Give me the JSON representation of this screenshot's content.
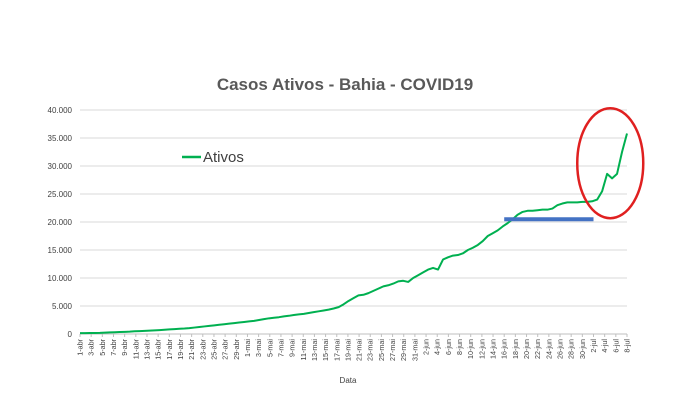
{
  "chart_data": {
    "type": "line",
    "title": "Casos Ativos - Bahia - COVID19",
    "xlabel": "Data",
    "ylabel": "",
    "ylim": [
      0,
      40000
    ],
    "yticks": [
      "0",
      "5.000",
      "10.000",
      "15.000",
      "20.000",
      "25.000",
      "30.000",
      "35.000",
      "40.000"
    ],
    "ytick_values": [
      0,
      5000,
      10000,
      15000,
      20000,
      25000,
      30000,
      35000,
      40000
    ],
    "grid": true,
    "legend_position": "upper-left inside",
    "xticks": [
      "1-abr",
      "3-abr",
      "5-abr",
      "7-abr",
      "9-abr",
      "11-abr",
      "13-abr",
      "15-abr",
      "17-abr",
      "19-abr",
      "21-abr",
      "23-abr",
      "25-abr",
      "27-abr",
      "29-abr",
      "1-mai",
      "3-mai",
      "5-mai",
      "7-mai",
      "9-mai",
      "11-mai",
      "13-mai",
      "15-mai",
      "17-mai",
      "19-mai",
      "21-mai",
      "23-mai",
      "25-mai",
      "27-mai",
      "29-mai",
      "31-mai",
      "2-jun",
      "4-jun",
      "6-jun",
      "8-jun",
      "10-jun",
      "12-jun",
      "14-jun",
      "16-jun",
      "18-jun",
      "20-jun",
      "22-jun",
      "24-jun",
      "26-jun",
      "28-jun",
      "30-jun",
      "2-jul",
      "4-jul",
      "6-jul",
      "8-jul"
    ],
    "series": [
      {
        "name": "Ativos",
        "color": "#00b050",
        "x_start": "1-abr",
        "x_end": "8-jul",
        "values": [
          150,
          160,
          170,
          180,
          200,
          250,
          300,
          320,
          350,
          380,
          420,
          480,
          520,
          560,
          600,
          650,
          700,
          760,
          820,
          880,
          930,
          980,
          1050,
          1150,
          1250,
          1350,
          1450,
          1550,
          1650,
          1750,
          1850,
          1950,
          2050,
          2150,
          2250,
          2350,
          2500,
          2650,
          2800,
          2900,
          3000,
          3150,
          3250,
          3400,
          3500,
          3600,
          3750,
          3900,
          4050,
          4200,
          4350,
          4550,
          4800,
          5300,
          5900,
          6400,
          6900,
          7000,
          7300,
          7700,
          8100,
          8500,
          8700,
          9000,
          9400,
          9500,
          9300,
          10000,
          10500,
          11000,
          11500,
          11800,
          11500,
          13300,
          13700,
          14000,
          14100,
          14400,
          15000,
          15400,
          15900,
          16600,
          17500,
          18000,
          18500,
          19200,
          19800,
          20500,
          21300,
          21800,
          22000,
          22000,
          22100,
          22200,
          22200,
          22400,
          23000,
          23300,
          23500,
          23500,
          23500,
          23600,
          23600,
          23700,
          24000,
          25500,
          28600,
          27800,
          28600,
          32500,
          35800
        ]
      }
    ],
    "annotations": [
      {
        "kind": "horizontal-line",
        "color": "#4472c4",
        "x_start": "16-jun",
        "x_end": "2-jul",
        "y": 20500
      },
      {
        "kind": "ellipse",
        "color": "#e02020",
        "x_center": "5-jul",
        "y_center": 30500
      }
    ]
  }
}
